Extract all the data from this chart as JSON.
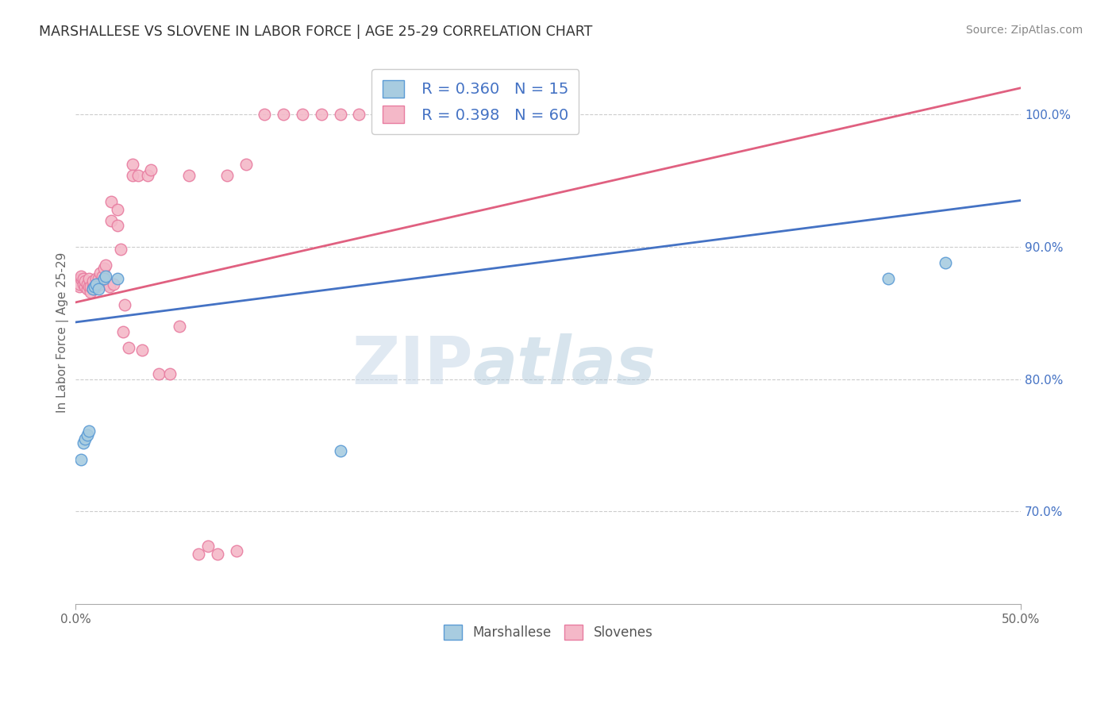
{
  "title": "MARSHALLESE VS SLOVENE IN LABOR FORCE | AGE 25-29 CORRELATION CHART",
  "source": "Source: ZipAtlas.com",
  "ylabel": "In Labor Force | Age 25-29",
  "xlim": [
    0.0,
    0.5
  ],
  "ylim": [
    0.63,
    1.04
  ],
  "xticks": [
    0.0,
    0.5
  ],
  "xticklabels": [
    "0.0%",
    "50.0%"
  ],
  "yticks": [
    0.7,
    0.8,
    0.9,
    1.0
  ],
  "yticklabels": [
    "70.0%",
    "80.0%",
    "90.0%",
    "100.0%"
  ],
  "blue_color": "#a8cce0",
  "pink_color": "#f4b8c8",
  "blue_edge_color": "#5b9bd5",
  "pink_edge_color": "#e87ca0",
  "blue_line_color": "#4472c4",
  "pink_line_color": "#e06080",
  "tick_label_color": "#4472c4",
  "legend_r_blue": "R = 0.360",
  "legend_n_blue": "N = 15",
  "legend_r_pink": "R = 0.398",
  "legend_n_pink": "N = 60",
  "watermark_zip": "ZIP",
  "watermark_atlas": "atlas",
  "marshallese_x": [
    0.003,
    0.004,
    0.005,
    0.006,
    0.007,
    0.009,
    0.01,
    0.011,
    0.012,
    0.015,
    0.016,
    0.022,
    0.14,
    0.43,
    0.46
  ],
  "marshallese_y": [
    0.739,
    0.752,
    0.755,
    0.758,
    0.761,
    0.868,
    0.87,
    0.872,
    0.868,
    0.876,
    0.878,
    0.876,
    0.746,
    0.876,
    0.888
  ],
  "slovene_x": [
    0.002,
    0.002,
    0.003,
    0.003,
    0.004,
    0.004,
    0.005,
    0.005,
    0.006,
    0.006,
    0.007,
    0.007,
    0.008,
    0.008,
    0.009,
    0.009,
    0.01,
    0.01,
    0.011,
    0.012,
    0.013,
    0.013,
    0.014,
    0.015,
    0.016,
    0.016,
    0.017,
    0.018,
    0.019,
    0.019,
    0.02,
    0.022,
    0.022,
    0.024,
    0.025,
    0.026,
    0.028,
    0.03,
    0.03,
    0.033,
    0.035,
    0.038,
    0.04,
    0.044,
    0.05,
    0.055,
    0.06,
    0.065,
    0.07,
    0.075,
    0.08,
    0.085,
    0.09,
    0.1,
    0.11,
    0.12,
    0.13,
    0.14,
    0.15,
    0.2
  ],
  "slovene_y": [
    0.87,
    0.872,
    0.876,
    0.878,
    0.872,
    0.876,
    0.87,
    0.874,
    0.868,
    0.872,
    0.87,
    0.876,
    0.866,
    0.87,
    0.87,
    0.874,
    0.87,
    0.868,
    0.876,
    0.876,
    0.88,
    0.872,
    0.878,
    0.884,
    0.886,
    0.876,
    0.872,
    0.87,
    0.934,
    0.92,
    0.872,
    0.928,
    0.916,
    0.898,
    0.836,
    0.856,
    0.824,
    0.962,
    0.954,
    0.954,
    0.822,
    0.954,
    0.958,
    0.804,
    0.804,
    0.84,
    0.954,
    0.668,
    0.674,
    0.668,
    0.954,
    0.67,
    0.962,
    1.0,
    1.0,
    1.0,
    1.0,
    1.0,
    1.0,
    1.0
  ]
}
